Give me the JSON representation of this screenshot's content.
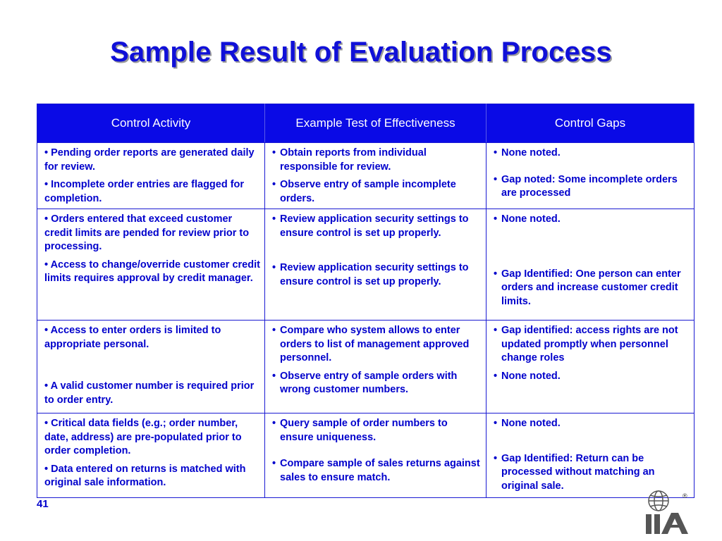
{
  "title": "Sample Result of Evaluation Process",
  "table": {
    "headers": [
      "Control Activity",
      "Example Test of Effectiveness",
      "Control Gaps"
    ],
    "rows": [
      {
        "activity": [
          "• Pending order reports are generated daily for review.",
          "• Incomplete order entries are flagged for completion."
        ],
        "tests": [
          "Obtain reports from individual responsible for review.",
          "Observe entry of sample incomplete orders."
        ],
        "gaps": [
          "None noted.",
          "Gap noted: Some incomplete orders are processed"
        ]
      },
      {
        "activity": [
          "• Orders entered that exceed customer credit limits are pended for review prior to processing.",
          "• Access to change/override customer credit limits requires approval by credit manager."
        ],
        "tests": [
          "Review application security settings to ensure control is set up properly.",
          "Review application security settings to ensure control is set up properly."
        ],
        "gaps": [
          "None noted.",
          "Gap Identified: One person can enter orders and increase customer credit limits."
        ]
      },
      {
        "activity": [
          "• Access to enter orders is limited to appropriate personal.",
          "• A valid customer number is required prior to order entry."
        ],
        "tests": [
          "Compare who system allows to enter orders to list of management approved personnel.",
          "Observe entry of sample orders with wrong customer numbers."
        ],
        "gaps": [
          "Gap identified: access rights are not updated promptly when personnel change roles",
          "None noted."
        ]
      },
      {
        "activity": [
          "• Critical data fields (e.g.; order number, date, address) are pre-populated prior to order completion.",
          "• Data entered on returns is matched with original sale information."
        ],
        "tests": [
          "Query sample of order numbers to ensure uniqueness.",
          "Compare sample of sales returns against sales to ensure match."
        ],
        "gaps": [
          "None noted.",
          "Gap Identified: Return can be processed without matching an original sale."
        ]
      }
    ]
  },
  "page_number": "41",
  "logo": {
    "text": "IIA",
    "registered": "®"
  },
  "colors": {
    "title": "#1010d8",
    "header_bg": "#0a0ae6",
    "body_text": "#0000cc",
    "border": "#1a1ad2"
  }
}
